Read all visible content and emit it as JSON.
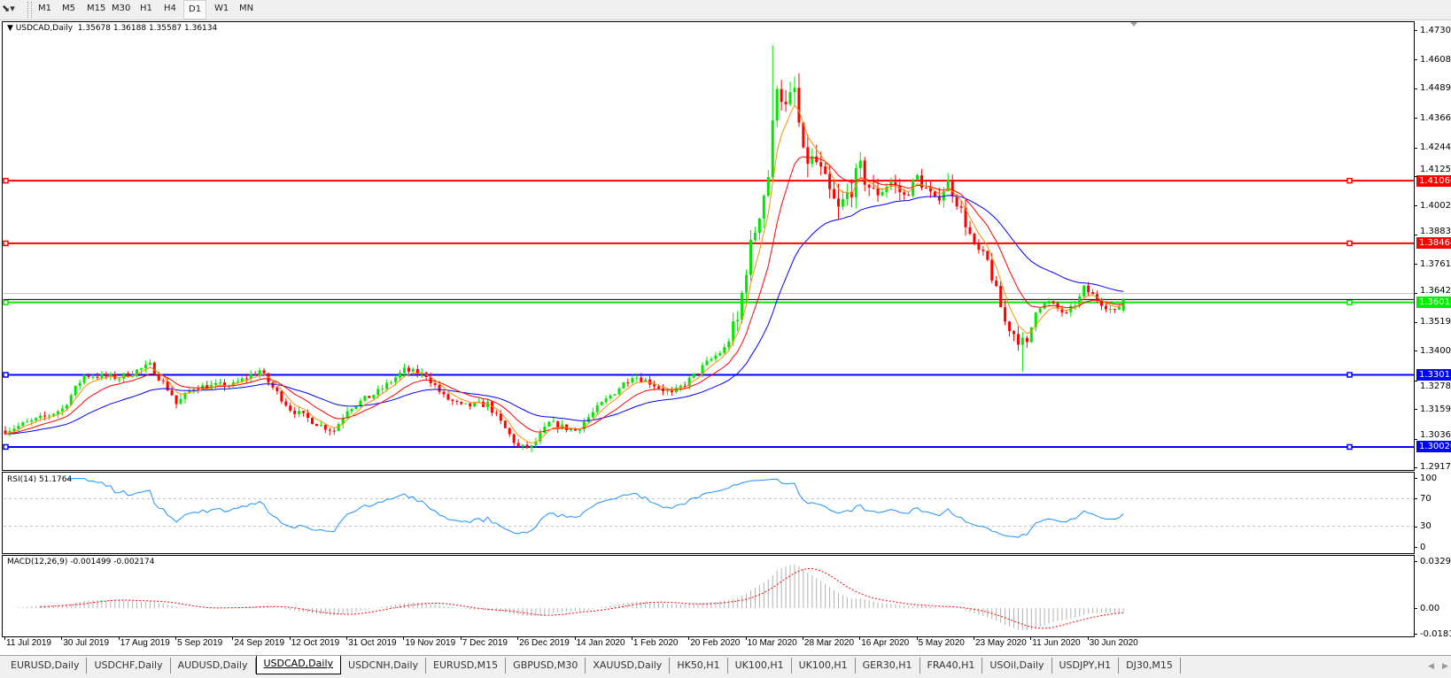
{
  "toolbar": {
    "tool_icon": "line-tools-icon",
    "timeframes": [
      "M1",
      "M5",
      "M15",
      "M30",
      "H1",
      "H4",
      "D1",
      "W1",
      "MN"
    ],
    "active_timeframe": "D1"
  },
  "chart": {
    "symbol_label": "USDCAD,Daily",
    "ohlc_label": "1.35678 1.36188 1.35587 1.36134",
    "bull_color": "#00e600",
    "bear_color": "#ff0000",
    "ma_colors": {
      "fast": "#ff8c00",
      "mid": "#ff0000",
      "slow": "#0000ff"
    }
  },
  "price_axis": {
    "labels": [
      "1.47305",
      "1.46080",
      "1.44890",
      "1.43665",
      "1.42440",
      "1.41250",
      "1.40025",
      "1.38835",
      "1.37610",
      "1.36420",
      "1.35195",
      "1.34005",
      "1.32780",
      "1.31590",
      "1.30365",
      "1.29175"
    ]
  },
  "horizontal_lines": [
    {
      "price": 1.4106,
      "label": "1.41060",
      "color": "#ff0000"
    },
    {
      "price": 1.38464,
      "label": "1.38464",
      "color": "#ff0000"
    },
    {
      "price": 1.36015,
      "label": "1.36015",
      "color": "#00ee00"
    },
    {
      "price": 1.33011,
      "label": "1.33011",
      "color": "#0000ff"
    },
    {
      "price": 1.3002,
      "label": "1.30020",
      "color": "#0000ff"
    }
  ],
  "rsi": {
    "title": "RSI(14) 51.1764",
    "color": "#1e90ff",
    "levels": [
      "100",
      "70",
      "30",
      "0"
    ]
  },
  "macd": {
    "title": "MACD(12,26,9) -0.001499 -0.002174",
    "levels": [
      "0.032972",
      "0.00",
      "-0.01815"
    ],
    "hist_color": "#b0b0b0",
    "signal_color": "#ff0000"
  },
  "date_axis": {
    "labels": [
      "11 Jul 2019",
      "30 Jul 2019",
      "17 Aug 2019",
      "5 Sep 2019",
      "24 Sep 2019",
      "12 Oct 2019",
      "31 Oct 2019",
      "19 Nov 2019",
      "7 Dec 2019",
      "26 Dec 2019",
      "14 Jan 2020",
      "1 Feb 2020",
      "20 Feb 2020",
      "10 Mar 2020",
      "28 Mar 2020",
      "16 Apr 2020",
      "5 May 2020",
      "23 May 2020",
      "11 Jun 2020",
      "30 Jun 2020"
    ]
  },
  "tabs": [
    {
      "label": "EURUSD,Daily"
    },
    {
      "label": "USDCHF,Daily"
    },
    {
      "label": "AUDUSD,Daily"
    },
    {
      "label": "USDCAD,Daily",
      "active": true
    },
    {
      "label": "USDCNH,Daily"
    },
    {
      "label": "EURUSD,M15"
    },
    {
      "label": "GBPUSD,M30"
    },
    {
      "label": "XAUUSD,Daily"
    },
    {
      "label": "HK50,H1"
    },
    {
      "label": "UK100,H1"
    },
    {
      "label": "UK100,H1"
    },
    {
      "label": "GER30,H1"
    },
    {
      "label": "FRA40,H1"
    },
    {
      "label": "USOil,Daily"
    },
    {
      "label": "USDJPY,H1"
    },
    {
      "label": "DJ30,M15"
    }
  ],
  "chart_data": {
    "type": "candlestick",
    "symbol": "USDCAD",
    "ylim": [
      1.29175,
      1.47305
    ],
    "approx_close_path": [
      [
        0,
        1.307
      ],
      [
        8,
        1.312
      ],
      [
        13,
        1.316
      ],
      [
        18,
        1.33
      ],
      [
        26,
        1.329
      ],
      [
        33,
        1.334
      ],
      [
        38,
        1.322
      ],
      [
        39,
        1.318
      ],
      [
        43,
        1.325
      ],
      [
        52,
        1.326
      ],
      [
        58,
        1.332
      ],
      [
        60,
        1.327
      ],
      [
        65,
        1.316
      ],
      [
        72,
        1.309
      ],
      [
        75,
        1.307
      ],
      [
        78,
        1.316
      ],
      [
        85,
        1.323
      ],
      [
        91,
        1.332
      ],
      [
        96,
        1.33
      ],
      [
        100,
        1.321
      ],
      [
        104,
        1.317
      ],
      [
        110,
        1.318
      ],
      [
        117,
        1.3
      ],
      [
        120,
        1.3
      ],
      [
        124,
        1.31
      ],
      [
        130,
        1.307
      ],
      [
        136,
        1.318
      ],
      [
        143,
        1.33
      ],
      [
        147,
        1.327
      ],
      [
        152,
        1.322
      ],
      [
        156,
        1.328
      ],
      [
        160,
        1.335
      ],
      [
        164,
        1.341
      ],
      [
        167,
        1.352
      ],
      [
        169,
        1.375
      ],
      [
        172,
        1.398
      ],
      [
        174,
        1.413
      ],
      [
        176,
        1.452
      ],
      [
        178,
        1.44
      ],
      [
        180,
        1.448
      ],
      [
        182,
        1.42
      ],
      [
        185,
        1.418
      ],
      [
        188,
        1.405
      ],
      [
        190,
        1.398
      ],
      [
        193,
        1.408
      ],
      [
        195,
        1.415
      ],
      [
        198,
        1.405
      ],
      [
        202,
        1.41
      ],
      [
        205,
        1.404
      ],
      [
        208,
        1.412
      ],
      [
        212,
        1.402
      ],
      [
        215,
        1.41
      ],
      [
        218,
        1.398
      ],
      [
        221,
        1.383
      ],
      [
        224,
        1.377
      ],
      [
        228,
        1.352
      ],
      [
        231,
        1.345
      ],
      [
        233,
        1.342
      ],
      [
        235,
        1.358
      ],
      [
        238,
        1.36
      ],
      [
        242,
        1.355
      ],
      [
        245,
        1.362
      ],
      [
        246,
        1.366
      ],
      [
        250,
        1.36
      ],
      [
        253,
        1.356
      ],
      [
        255,
        1.36134
      ]
    ],
    "last_bar": {
      "open": 1.35678,
      "high": 1.36188,
      "low": 1.35587,
      "close": 1.36134
    },
    "moving_averages": [
      "fast",
      "mid",
      "slow"
    ],
    "rsi_range": [
      0,
      100
    ],
    "macd_range": [
      -0.01815,
      0.032972
    ]
  }
}
